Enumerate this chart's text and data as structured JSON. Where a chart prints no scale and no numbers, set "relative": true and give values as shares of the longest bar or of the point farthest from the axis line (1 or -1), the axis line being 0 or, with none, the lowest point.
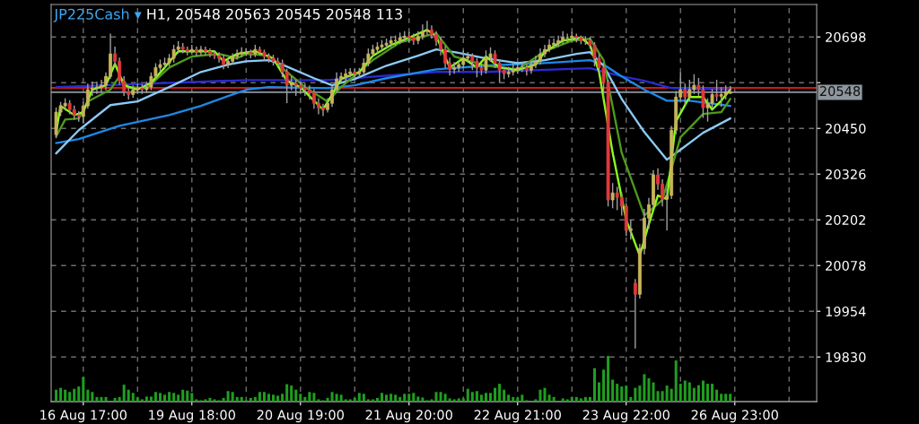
{
  "chart_data": [
    {
      "type": "candlestick",
      "title": "JP225Cash ▾",
      "subtitle": "H1, 20548 20563 20545 20548 113",
      "categories": [
        null,
        null,
        null,
        null,
        null,
        null,
        "16 Aug 17:00",
        null,
        null,
        null,
        null,
        null,
        null,
        null,
        null,
        null,
        null,
        null,
        null,
        null,
        null,
        null,
        null,
        null,
        null,
        null,
        null,
        null,
        null,
        null,
        "19 Aug 18:00",
        null,
        null,
        null,
        null,
        null,
        null,
        null,
        null,
        null,
        null,
        null,
        null,
        null,
        null,
        null,
        null,
        null,
        null,
        null,
        null,
        null,
        null,
        null,
        "20 Aug 19:00",
        null,
        null,
        null,
        null,
        null,
        null,
        null,
        null,
        null,
        null,
        null,
        null,
        null,
        null,
        null,
        null,
        null,
        null,
        null,
        null,
        null,
        null,
        null,
        "21 Aug 20:00",
        null,
        null,
        null,
        null,
        null,
        null,
        null,
        null,
        null,
        null,
        null,
        null,
        null,
        null,
        null,
        null,
        null,
        null,
        null,
        null,
        null,
        null,
        null,
        "22 Aug 21:00",
        null,
        null,
        null,
        null,
        null,
        null,
        null,
        null,
        null,
        null,
        null,
        null,
        null,
        null,
        null,
        null,
        null,
        null,
        null,
        null,
        null,
        null,
        null,
        "23 Aug 22:00",
        null,
        null,
        null,
        null,
        null,
        null,
        null,
        null,
        null,
        null,
        null,
        null,
        null,
        null,
        null,
        null,
        null,
        null,
        null,
        null,
        null,
        null,
        null,
        "26 Aug 23:00",
        null,
        null,
        null,
        null,
        null,
        null,
        null,
        null,
        null,
        null,
        null,
        null,
        null,
        null,
        null,
        null,
        null,
        null
      ],
      "ohlc": [
        [
          20433,
          20505,
          20425,
          20494
        ],
        [
          20494,
          20520,
          20485,
          20511
        ],
        [
          20511,
          20530,
          20500,
          20518
        ],
        [
          20518,
          20525,
          20490,
          20501
        ],
        [
          20501,
          20510,
          20475,
          20486
        ],
        [
          20486,
          20495,
          20470,
          20482
        ],
        [
          20482,
          20520,
          20465,
          20511
        ],
        [
          20511,
          20570,
          20505,
          20555
        ],
        [
          20555,
          20575,
          20540,
          20559
        ],
        [
          20559,
          20575,
          20545,
          20562
        ],
        [
          20562,
          20580,
          20550,
          20567
        ],
        [
          20567,
          20600,
          20555,
          20591
        ],
        [
          20591,
          20705,
          20585,
          20652
        ],
        [
          20652,
          20670,
          20620,
          20632
        ],
        [
          20632,
          20640,
          20570,
          20579
        ],
        [
          20579,
          20590,
          20540,
          20550
        ],
        [
          20550,
          20560,
          20530,
          20542
        ],
        [
          20542,
          20565,
          20535,
          20555
        ],
        [
          20555,
          20570,
          20545,
          20559
        ],
        [
          20559,
          20568,
          20545,
          20555
        ],
        [
          20555,
          20575,
          20548,
          20562
        ],
        [
          20562,
          20600,
          20555,
          20591
        ],
        [
          20591,
          20625,
          20585,
          20615
        ],
        [
          20615,
          20635,
          20605,
          20623
        ],
        [
          20623,
          20640,
          20615,
          20627
        ],
        [
          20627,
          20650,
          20620,
          20640
        ],
        [
          20640,
          20675,
          20630,
          20664
        ],
        [
          20664,
          20685,
          20655,
          20671
        ],
        [
          20671,
          20680,
          20655,
          20664
        ],
        [
          20664,
          20670,
          20650,
          20659
        ],
        [
          20659,
          20675,
          20652,
          20664
        ],
        [
          20664,
          20670,
          20648,
          20657
        ],
        [
          20657,
          20672,
          20650,
          20664
        ],
        [
          20664,
          20670,
          20650,
          20659
        ],
        [
          20659,
          20665,
          20645,
          20652
        ],
        [
          20652,
          20660,
          20640,
          20647
        ],
        [
          20647,
          20655,
          20630,
          20640
        ],
        [
          20640,
          20648,
          20612,
          20623
        ],
        [
          20623,
          20640,
          20615,
          20632
        ],
        [
          20632,
          20652,
          20625,
          20645
        ],
        [
          20645,
          20662,
          20638,
          20652
        ],
        [
          20652,
          20668,
          20645,
          20657
        ],
        [
          20657,
          20665,
          20648,
          20657
        ],
        [
          20657,
          20662,
          20642,
          20652
        ],
        [
          20652,
          20675,
          20645,
          20664
        ],
        [
          20664,
          20670,
          20650,
          20657
        ],
        [
          20657,
          20662,
          20635,
          20645
        ],
        [
          20645,
          20652,
          20630,
          20640
        ],
        [
          20640,
          20648,
          20622,
          20632
        ],
        [
          20632,
          20640,
          20615,
          20627
        ],
        [
          20627,
          20635,
          20590,
          20603
        ],
        [
          20603,
          20610,
          20520,
          20567
        ],
        [
          20567,
          20590,
          20555,
          20572
        ],
        [
          20572,
          20580,
          20540,
          20567
        ],
        [
          20567,
          20575,
          20545,
          20559
        ],
        [
          20559,
          20570,
          20540,
          20555
        ],
        [
          20555,
          20565,
          20530,
          20547
        ],
        [
          20547,
          20555,
          20505,
          20518
        ],
        [
          20518,
          20530,
          20490,
          20506
        ],
        [
          20506,
          20515,
          20485,
          20501
        ],
        [
          20501,
          20530,
          20495,
          20518
        ],
        [
          20518,
          20565,
          20510,
          20555
        ],
        [
          20555,
          20600,
          20548,
          20584
        ],
        [
          20584,
          20600,
          20575,
          20591
        ],
        [
          20591,
          20610,
          20580,
          20598
        ],
        [
          20598,
          20612,
          20590,
          20603
        ],
        [
          20603,
          20610,
          20588,
          20598
        ],
        [
          20598,
          20612,
          20590,
          20603
        ],
        [
          20603,
          20638,
          20595,
          20627
        ],
        [
          20627,
          20665,
          20620,
          20652
        ],
        [
          20652,
          20675,
          20645,
          20664
        ],
        [
          20664,
          20682,
          20655,
          20671
        ],
        [
          20671,
          20688,
          20662,
          20676
        ],
        [
          20676,
          20692,
          20668,
          20681
        ],
        [
          20681,
          20698,
          20672,
          20688
        ],
        [
          20688,
          20700,
          20675,
          20688
        ],
        [
          20688,
          20708,
          20680,
          20696
        ],
        [
          20696,
          20712,
          20688,
          20700
        ],
        [
          20700,
          20710,
          20685,
          20696
        ],
        [
          20696,
          20705,
          20678,
          20688
        ],
        [
          20688,
          20712,
          20680,
          20700
        ],
        [
          20700,
          20730,
          20692,
          20713
        ],
        [
          20713,
          20740,
          20705,
          20717
        ],
        [
          20717,
          20728,
          20695,
          20705
        ],
        [
          20705,
          20712,
          20675,
          20688
        ],
        [
          20688,
          20695,
          20650,
          20664
        ],
        [
          20664,
          20672,
          20615,
          20627
        ],
        [
          20627,
          20640,
          20595,
          20610
        ],
        [
          20610,
          20628,
          20600,
          20615
        ],
        [
          20615,
          20632,
          20605,
          20623
        ],
        [
          20623,
          20660,
          20615,
          20640
        ],
        [
          20640,
          20655,
          20630,
          20645
        ],
        [
          20645,
          20652,
          20610,
          20632
        ],
        [
          20632,
          20640,
          20590,
          20615
        ],
        [
          20615,
          20625,
          20595,
          20608
        ],
        [
          20608,
          20660,
          20600,
          20640
        ],
        [
          20640,
          20668,
          20632,
          20652
        ],
        [
          20652,
          20660,
          20615,
          20627
        ],
        [
          20627,
          20635,
          20575,
          20608
        ],
        [
          20608,
          20615,
          20585,
          20598
        ],
        [
          20598,
          20615,
          20590,
          20603
        ],
        [
          20603,
          20625,
          20595,
          20608
        ],
        [
          20608,
          20625,
          20600,
          20615
        ],
        [
          20615,
          20628,
          20605,
          20615
        ],
        [
          20615,
          20622,
          20595,
          20608
        ],
        [
          20608,
          20632,
          20600,
          20623
        ],
        [
          20623,
          20645,
          20615,
          20632
        ],
        [
          20632,
          20665,
          20625,
          20652
        ],
        [
          20652,
          20675,
          20645,
          20664
        ],
        [
          20664,
          20690,
          20658,
          20676
        ],
        [
          20676,
          20692,
          20668,
          20681
        ],
        [
          20681,
          20700,
          20672,
          20688
        ],
        [
          20688,
          20712,
          20680,
          20696
        ],
        [
          20696,
          20705,
          20685,
          20696
        ],
        [
          20696,
          20710,
          20688,
          20700
        ],
        [
          20700,
          20705,
          20685,
          20696
        ],
        [
          20696,
          20700,
          20680,
          20688
        ],
        [
          20688,
          20698,
          20678,
          20688
        ],
        [
          20688,
          20695,
          20668,
          20676
        ],
        [
          20676,
          20682,
          20620,
          20640
        ],
        [
          20640,
          20650,
          20600,
          20615
        ],
        [
          20615,
          20625,
          20530,
          20574
        ],
        [
          20574,
          20580,
          20240,
          20256
        ],
        [
          20256,
          20300,
          20235,
          20275
        ],
        [
          20275,
          20290,
          20230,
          20263
        ],
        [
          20263,
          20275,
          20215,
          20239
        ],
        [
          20239,
          20245,
          20160,
          20173
        ],
        [
          20173,
          20200,
          20150,
          20178
        ],
        [
          20030,
          20040,
          19855,
          20000
        ],
        [
          20000,
          20135,
          19990,
          20124
        ],
        [
          20124,
          20230,
          20110,
          20207
        ],
        [
          20207,
          20260,
          20180,
          20243
        ],
        [
          20243,
          20335,
          20235,
          20324
        ],
        [
          20324,
          20340,
          20285,
          20299
        ],
        [
          20299,
          20310,
          20240,
          20258
        ],
        [
          20258,
          20285,
          20175,
          20268
        ],
        [
          20268,
          20455,
          20260,
          20445
        ],
        [
          20445,
          20550,
          20435,
          20535
        ],
        [
          20535,
          20600,
          20525,
          20555
        ],
        [
          20555,
          20570,
          20515,
          20535
        ],
        [
          20535,
          20580,
          20525,
          20555
        ],
        [
          20555,
          20595,
          20545,
          20567
        ],
        [
          20567,
          20585,
          20540,
          20555
        ],
        [
          20555,
          20565,
          20480,
          20506
        ],
        [
          20506,
          20530,
          20470,
          20518
        ],
        [
          20518,
          20555,
          20505,
          20542
        ],
        [
          20542,
          20580,
          20525,
          20537
        ],
        [
          20537,
          20560,
          20510,
          20542
        ],
        [
          20542,
          20565,
          20530,
          20550
        ],
        [
          20545,
          20563,
          20545,
          20548
        ],
        null,
        null,
        null,
        null,
        null,
        null,
        null,
        null,
        null,
        null,
        null,
        null,
        null,
        null,
        null,
        null,
        null,
        null,
        null
      ],
      "series": [
        {
          "type": "line",
          "color": "#2a2ad0",
          "values": [
            20562,
            null,
            null,
            null,
            null,
            null,
            null,
            null,
            null,
            null,
            null,
            null,
            null,
            null,
            null,
            null,
            null,
            null,
            null,
            null,
            null,
            null,
            null,
            null,
            null,
            null,
            null,
            null,
            null,
            null,
            null,
            null,
            null,
            null,
            null,
            null,
            null,
            null,
            null,
            null,
            null,
            null,
            20581,
            null,
            null,
            null,
            null,
            null,
            null,
            null,
            null,
            null,
            null,
            null,
            null,
            null,
            null,
            null,
            null,
            null,
            20581,
            null,
            null,
            null,
            null,
            null,
            null,
            null,
            null,
            null,
            null,
            null,
            null,
            null,
            null,
            null,
            null,
            null,
            null,
            null,
            null,
            null,
            null,
            null,
            20603,
            null,
            null,
            null,
            null,
            null,
            null,
            null,
            null,
            null,
            null,
            20603,
            null,
            null,
            null,
            null,
            null,
            null,
            null,
            null,
            null,
            null,
            null,
            null,
            null,
            null,
            null,
            null,
            null,
            null,
            null,
            null,
            null,
            null,
            20613,
            null,
            null,
            null,
            null,
            null,
            null,
            20591,
            null,
            null,
            null,
            null,
            20579,
            null,
            null,
            null,
            null,
            null,
            20559,
            null,
            null,
            null,
            null,
            null,
            null,
            null,
            null,
            null,
            null,
            null,
            null,
            20555,
            null,
            null,
            null,
            null,
            null,
            null,
            null,
            null,
            null,
            null,
            null,
            null,
            null,
            null,
            null,
            null,
            null,
            null,
            null
          ]
        },
        {
          "type": "line",
          "color": "#1e88e5",
          "values": [
            20410,
            null,
            null,
            null,
            null,
            20421,
            null,
            null,
            null,
            null,
            null,
            null,
            null,
            null,
            20457,
            null,
            null,
            null,
            null,
            null,
            null,
            null,
            null,
            null,
            null,
            20486,
            null,
            null,
            null,
            null,
            null,
            null,
            20511,
            null,
            null,
            null,
            null,
            null,
            null,
            null,
            null,
            null,
            20555,
            null,
            null,
            null,
            null,
            20562,
            null,
            null,
            null,
            null,
            null,
            null,
            null,
            null,
            null,
            null,
            null,
            null,
            20559,
            null,
            null,
            null,
            null,
            null,
            20567,
            null,
            null,
            null,
            null,
            null,
            null,
            20586,
            null,
            null,
            null,
            null,
            null,
            null,
            null,
            null,
            null,
            null,
            20610,
            null,
            null,
            null,
            null,
            null,
            null,
            null,
            null,
            null,
            null,
            20620,
            null,
            null,
            null,
            null,
            null,
            null,
            null,
            null,
            null,
            null,
            null,
            null,
            20627,
            null,
            null,
            null,
            null,
            null,
            null,
            null,
            null,
            null,
            20635,
            null,
            null,
            20623,
            null,
            null,
            null,
            20591,
            null,
            null,
            null,
            null,
            20555,
            null,
            null,
            null,
            null,
            20525,
            null,
            null,
            null,
            null,
            20525,
            null,
            null,
            null,
            null,
            null,
            null,
            null,
            null,
            20511,
            null,
            null,
            null,
            null,
            null,
            null,
            null,
            null,
            null,
            null,
            null,
            null,
            null,
            null,
            null,
            null,
            null,
            null,
            null
          ]
        },
        {
          "type": "line",
          "color": "#8ccaf5",
          "values": [
            20382,
            null,
            null,
            null,
            null,
            20445,
            null,
            null,
            null,
            null,
            null,
            null,
            20513,
            null,
            null,
            null,
            null,
            null,
            20523,
            null,
            null,
            null,
            null,
            null,
            null,
            20562,
            null,
            null,
            null,
            null,
            null,
            null,
            20603,
            null,
            null,
            null,
            null,
            null,
            20623,
            null,
            null,
            null,
            20632,
            null,
            null,
            null,
            null,
            20635,
            null,
            null,
            20623,
            null,
            null,
            null,
            null,
            null,
            null,
            20586,
            null,
            null,
            null,
            20567,
            null,
            null,
            null,
            null,
            20584,
            null,
            null,
            null,
            null,
            null,
            null,
            20620,
            null,
            null,
            null,
            null,
            null,
            null,
            20647,
            null,
            null,
            null,
            20664,
            null,
            null,
            null,
            20657,
            null,
            null,
            null,
            null,
            null,
            null,
            20640,
            null,
            null,
            null,
            null,
            null,
            null,
            20627,
            null,
            null,
            null,
            null,
            null,
            20635,
            null,
            null,
            null,
            null,
            null,
            null,
            20652,
            null,
            null,
            20657,
            null,
            null,
            20620,
            null,
            null,
            null,
            20530,
            null,
            null,
            null,
            null,
            20440,
            null,
            null,
            null,
            null,
            20365,
            null,
            null,
            20392,
            null,
            null,
            null,
            null,
            20438,
            null,
            null,
            null,
            null,
            null,
            20477,
            null,
            null,
            null,
            null,
            null,
            null,
            null,
            null,
            null,
            null,
            null,
            null,
            null,
            null,
            null,
            null,
            null,
            null,
            null
          ]
        },
        {
          "type": "line",
          "color": "#4f9a1c",
          "values": [
            20428,
            null,
            20474,
            null,
            null,
            20477,
            null,
            20523,
            null,
            null,
            null,
            null,
            20555,
            null,
            20591,
            null,
            20562,
            null,
            null,
            null,
            20559,
            null,
            null,
            null,
            null,
            20615,
            null,
            null,
            null,
            null,
            20645,
            null,
            null,
            null,
            null,
            null,
            20652,
            null,
            null,
            null,
            20640,
            null,
            20652,
            null,
            null,
            null,
            null,
            20647,
            null,
            null,
            null,
            20603,
            null,
            null,
            null,
            20562,
            null,
            null,
            null,
            null,
            20523,
            null,
            null,
            20562,
            null,
            null,
            null,
            null,
            null,
            null,
            20635,
            null,
            null,
            null,
            null,
            null,
            20683,
            null,
            null,
            null,
            null,
            null,
            null,
            null,
            20708,
            null,
            null,
            null,
            20645,
            null,
            null,
            null,
            null,
            null,
            null,
            20620,
            null,
            null,
            null,
            null,
            null,
            null,
            20610,
            null,
            null,
            null,
            null,
            null,
            20659,
            null,
            null,
            null,
            null,
            null,
            20688,
            null,
            null,
            null,
            20693,
            null,
            null,
            20635,
            null,
            null,
            null,
            20384,
            null,
            null,
            null,
            null,
            20214,
            null,
            null,
            null,
            20256,
            null,
            null,
            null,
            20426,
            null,
            null,
            null,
            null,
            20489,
            null,
            null,
            null,
            20494,
            null,
            20530,
            null,
            null,
            null,
            null,
            null,
            null,
            null,
            null,
            null,
            null,
            null,
            null,
            null,
            null,
            null,
            null,
            null,
            null,
            null
          ]
        },
        {
          "type": "line",
          "color": "#8cff1a",
          "values": [
            20440,
            20511,
            null,
            null,
            20486,
            null,
            20494,
            null,
            20555,
            null,
            null,
            20567,
            null,
            20625,
            null,
            20567,
            null,
            null,
            20555,
            null,
            null,
            20574,
            null,
            null,
            20615,
            null,
            null,
            20659,
            null,
            null,
            null,
            20659,
            null,
            null,
            null,
            20659,
            null,
            20632,
            null,
            null,
            20652,
            null,
            null,
            null,
            20659,
            null,
            null,
            null,
            20640,
            null,
            null,
            20579,
            null,
            null,
            20562,
            null,
            null,
            null,
            20513,
            20501,
            null,
            20542,
            null,
            20584,
            null,
            null,
            null,
            20603,
            null,
            null,
            20647,
            null,
            null,
            null,
            20676,
            null,
            null,
            null,
            20696,
            null,
            null,
            null,
            20717,
            null,
            20700,
            null,
            null,
            20615,
            null,
            null,
            20640,
            null,
            null,
            20615,
            null,
            20645,
            null,
            null,
            20615,
            null,
            null,
            null,
            20608,
            null,
            null,
            null,
            20623,
            null,
            20657,
            null,
            null,
            null,
            20688,
            null,
            null,
            null,
            20696,
            null,
            20676,
            null,
            20603,
            null,
            null,
            20384,
            null,
            null,
            20202,
            null,
            null,
            20105,
            null,
            20190,
            null,
            20268,
            null,
            20258,
            null,
            20469,
            null,
            null,
            20535,
            null,
            null,
            20535,
            null,
            20501,
            null,
            20525,
            null,
            20555,
            null,
            null,
            null,
            null,
            null,
            null,
            null,
            null,
            null,
            null,
            null,
            null,
            null,
            null,
            null,
            null,
            null,
            null,
            null
          ]
        }
      ],
      "ylim": [
        19709,
        20786
      ],
      "yticks": [
        19830,
        19954,
        20078,
        20202,
        20326,
        20450,
        {
          "value": 20574,
          "label": null
        },
        20698
      ],
      "ref_lines": [
        {
          "axis": "y",
          "value": 20560,
          "label": null,
          "color": "#d01818"
        },
        {
          "axis": "y",
          "value": 20548,
          "label": "20548",
          "color": "#8e979e"
        }
      ],
      "grid": true,
      "legend": false
    },
    {
      "type": "bar",
      "relative": true,
      "color": "#1f9e1f",
      "categories": [
        null,
        null,
        null,
        null,
        null,
        null,
        null,
        null,
        null,
        null,
        null,
        null,
        null,
        null,
        null,
        null,
        null,
        null,
        null,
        null,
        null,
        null,
        null,
        null,
        null,
        null,
        null,
        null,
        null,
        null,
        null,
        null,
        null,
        null,
        null,
        null,
        null,
        null,
        null,
        null,
        null,
        null,
        null,
        null,
        null,
        null,
        null,
        null,
        null,
        null,
        null,
        null,
        null,
        null,
        null,
        null,
        null,
        null,
        null,
        null,
        null,
        null,
        null,
        null,
        null,
        null,
        null,
        null,
        null,
        null,
        null,
        null,
        null,
        null,
        null,
        null,
        null,
        null,
        null,
        null,
        null,
        null,
        null,
        null,
        null,
        null,
        null,
        null,
        null,
        null,
        null,
        null,
        null,
        null,
        null,
        null,
        null,
        null,
        null,
        null,
        null,
        null,
        null,
        null,
        null,
        null,
        null,
        null,
        null,
        null,
        null,
        null,
        null,
        null,
        null,
        null,
        null,
        null,
        null,
        null,
        null,
        null,
        null,
        null,
        null,
        null,
        null,
        null,
        null,
        null,
        null,
        null,
        null,
        null,
        null,
        null,
        null,
        null,
        null,
        null,
        null,
        null,
        null,
        null,
        null,
        null,
        null,
        null,
        null,
        null,
        null,
        null,
        null,
        null,
        null,
        null,
        null,
        null,
        null,
        null,
        null,
        null,
        null,
        null,
        null,
        null,
        null,
        null,
        null
      ],
      "values": [
        0.26,
        0.3,
        0.26,
        0.21,
        0.28,
        0.33,
        0.54,
        0.26,
        0.21,
        0.1,
        0.1,
        0.1,
        0.01,
        0.08,
        0.1,
        0.37,
        0.26,
        0.19,
        0.09,
        0.05,
        0.11,
        0.11,
        0.21,
        0.19,
        0.15,
        0.21,
        0.19,
        0.15,
        0.26,
        0.24,
        0.19,
        0.05,
        0.03,
        0.05,
        0.08,
        0.05,
        0.03,
        0.08,
        0.23,
        0.21,
        0.1,
        0.1,
        0.03,
        0.08,
        0.1,
        0.21,
        0.21,
        0.17,
        0.15,
        0.13,
        0.17,
        0.38,
        0.35,
        0.26,
        0.17,
        0.1,
        0.21,
        0.19,
        0.05,
        0.03,
        0.08,
        0.21,
        0.17,
        0.15,
        0.05,
        0.05,
        0.08,
        0.19,
        0.17,
        0.05,
        0.05,
        0.08,
        0.19,
        0.15,
        0.17,
        0.15,
        0.1,
        0.17,
        0.17,
        0.19,
        0.11,
        0.09,
        0.03,
        0.05,
        0.21,
        0.21,
        0.17,
        0.07,
        0.05,
        0.07,
        0.07,
        0.28,
        0.21,
        0.23,
        0.15,
        0.19,
        0.19,
        0.3,
        0.39,
        0.26,
        0.15,
        0.1,
        0.09,
        0.15,
        0.03,
        0.01,
        0.05,
        0.26,
        0.3,
        0.15,
        0.1,
        0.01,
        0.07,
        0.05,
        0.1,
        0.1,
        0.07,
        0.1,
        0.1,
        0.73,
        0.42,
        0.7,
        1,
        0.48,
        0.39,
        0.33,
        0.35,
        0.1,
        0.3,
        0.35,
        0.6,
        0.51,
        0.42,
        0.23,
        0.23,
        0.35,
        0.28,
        0.9,
        0.39,
        0.46,
        0.42,
        0.3,
        0.36,
        0.46,
        0.39,
        0.39,
        0.26,
        0.17,
        0.17,
        0.17,
        null,
        null,
        null,
        null,
        null,
        null,
        null,
        null,
        null,
        null,
        null,
        null,
        null,
        null,
        null,
        null,
        null,
        null,
        null
      ]
    }
  ]
}
